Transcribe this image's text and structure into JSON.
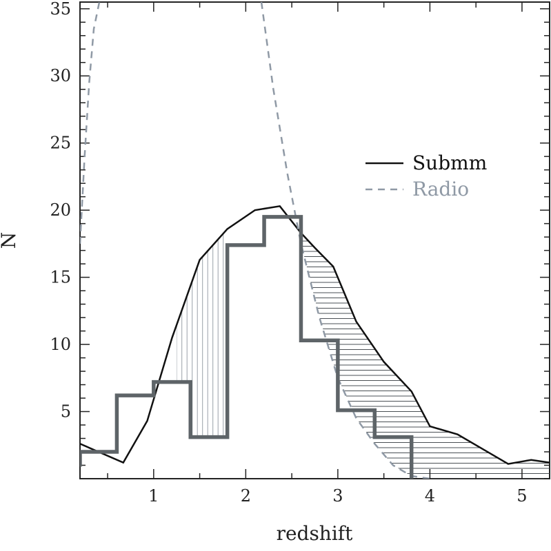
{
  "chart_data": {
    "type": "line",
    "title": "",
    "xlabel": "redshift",
    "ylabel": "N",
    "xlim": [
      0.2,
      5.3
    ],
    "ylim": [
      0,
      35.5
    ],
    "x_ticks": [
      1,
      2,
      3,
      4,
      5
    ],
    "y_ticks": [
      5,
      10,
      15,
      20,
      25,
      30,
      35
    ],
    "x_minor_step": 0.5,
    "y_minor_step": 1,
    "grid": false,
    "legend": {
      "placement": "center-right",
      "entries": [
        {
          "name": "Submm",
          "style": "solid",
          "color": "#111111"
        },
        {
          "name": "Radio",
          "style": "dashed",
          "color": "#8f99a5"
        }
      ]
    },
    "series": [
      {
        "name": "Submm",
        "kind": "line",
        "color": "#111111",
        "x": [
          0.2,
          0.67,
          0.93,
          1.2,
          1.5,
          1.8,
          2.1,
          2.37,
          2.6,
          2.75,
          2.95,
          3.2,
          3.5,
          3.8,
          4.0,
          4.3,
          4.6,
          4.85,
          5.1,
          5.3
        ],
        "y": [
          2.6,
          1.2,
          4.3,
          10.5,
          16.3,
          18.6,
          20.0,
          20.3,
          18.3,
          17.2,
          15.8,
          11.7,
          8.7,
          6.5,
          3.9,
          3.3,
          2.1,
          1.1,
          1.4,
          1.2
        ]
      },
      {
        "name": "Radio",
        "kind": "line",
        "color": "#8f99a5",
        "x": [
          0.2,
          0.25,
          0.3,
          0.35,
          0.41
        ],
        "y": [
          17.5,
          24.0,
          29.5,
          33.5,
          35.5
        ]
      },
      {
        "name": "Radio",
        "kind": "line",
        "color": "#8f99a5",
        "x": [
          2.17,
          2.3,
          2.45,
          2.6,
          2.8,
          3.0,
          3.2,
          3.4,
          3.6,
          3.8,
          4.0
        ],
        "y": [
          35.5,
          29.0,
          22.8,
          17.5,
          12.0,
          7.5,
          4.5,
          2.6,
          1.0,
          0.2,
          0.0
        ]
      },
      {
        "name": "histogram",
        "kind": "step",
        "color": "#5e6468",
        "bin_edges": [
          0.2,
          0.6,
          1.0,
          1.4,
          1.8,
          2.2,
          2.6,
          3.0,
          3.4,
          3.8
        ],
        "values": [
          2,
          6.2,
          7.2,
          3.1,
          17.4,
          19.5,
          10.3,
          5.1,
          3.1
        ]
      }
    ],
    "hatched_regions": [
      {
        "x_range": [
          1.25,
          1.78
        ],
        "pattern": "vertical"
      },
      {
        "x_range": [
          2.6,
          5.3
        ],
        "pattern": "horizontal"
      }
    ]
  }
}
